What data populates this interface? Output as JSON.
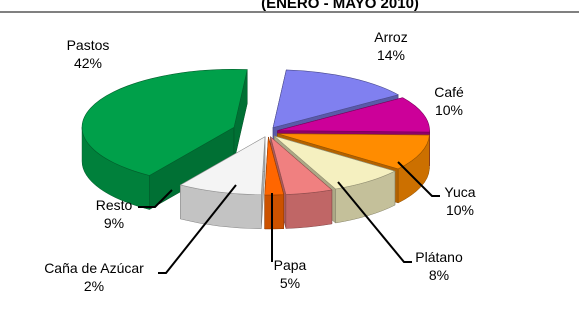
{
  "chart_data": {
    "type": "pie",
    "title": "(ENERO - MAYO 2010)",
    "slices": [
      {
        "name": "Arroz",
        "value": 14,
        "label": "14%",
        "color": "#8080f0"
      },
      {
        "name": "Café",
        "value": 10,
        "label": "10%",
        "color": "#cc0099"
      },
      {
        "name": "Yuca",
        "value": 10,
        "label": "10%",
        "color": "#ff8c00"
      },
      {
        "name": "Plátano",
        "value": 8,
        "label": "8%",
        "color": "#f5f0c0"
      },
      {
        "name": "Papa",
        "value": 5,
        "label": "5%",
        "color": "#f08080"
      },
      {
        "name": "Caña de Azúcar",
        "value": 2,
        "label": "2%",
        "color": "#ff6600"
      },
      {
        "name": "Resto",
        "value": 9,
        "label": "9%",
        "color": "#f4f4f4"
      },
      {
        "name": "Pastos",
        "value": 42,
        "label": "42%",
        "color": "#00a04a"
      }
    ],
    "exploded": true,
    "style": "3d"
  }
}
